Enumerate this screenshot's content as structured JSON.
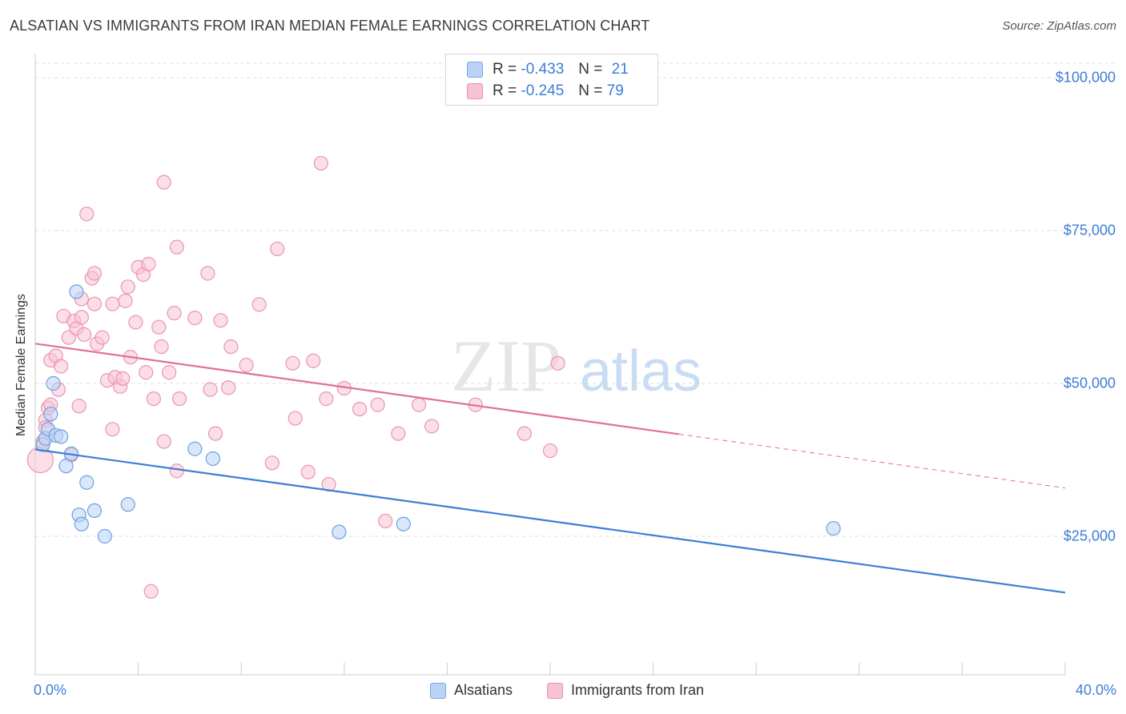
{
  "title": "ALSATIAN VS IMMIGRANTS FROM IRAN MEDIAN FEMALE EARNINGS CORRELATION CHART",
  "source": "Source: ZipAtlas.com",
  "watermark": {
    "zip": "ZIP",
    "atlas": "atlas"
  },
  "colors": {
    "blue": "#3d7dd8",
    "blue_fill": "#b8d3f5",
    "pink": "#e0709a",
    "pink_fill": "#f7c3d3",
    "grid": "#dcdcdc"
  },
  "legend": {
    "r_label": "R =",
    "n_label": "N =",
    "rows": [
      {
        "r": "-0.433",
        "n": "21"
      },
      {
        "r": "-0.245",
        "n": "79"
      }
    ]
  },
  "bottom_legend": {
    "series1": "Alsatians",
    "series2": "Immigrants from Iran"
  },
  "chart_data": {
    "type": "scatter",
    "title": "ALSATIAN VS IMMIGRANTS FROM IRAN MEDIAN FEMALE EARNINGS CORRELATION CHART",
    "ylabel": "Median Female Earnings",
    "xlabel": "",
    "x_tick_labels": [
      "0.0%",
      "40.0%"
    ],
    "y_tick_labels": [
      "$100,000",
      "$75,000",
      "$50,000",
      "$25,000"
    ],
    "y_ticks": [
      100000,
      75000,
      50000,
      25000
    ],
    "xlim": [
      0,
      40
    ],
    "ylim": [
      3000,
      102000
    ],
    "grid": true,
    "legend_position": "top-center",
    "series": [
      {
        "name": "Alsatians",
        "points": [
          [
            0.3,
            40.0
          ],
          [
            0.4,
            41.0
          ],
          [
            0.5,
            42.5
          ],
          [
            0.6,
            45.0
          ],
          [
            0.7,
            50.0
          ],
          [
            0.8,
            41.5
          ],
          [
            1.0,
            41.3
          ],
          [
            1.2,
            36.5
          ],
          [
            1.4,
            38.5
          ],
          [
            1.6,
            65.0
          ],
          [
            1.7,
            28.5
          ],
          [
            1.8,
            27.0
          ],
          [
            2.0,
            33.8
          ],
          [
            2.3,
            29.2
          ],
          [
            2.7,
            25.0
          ],
          [
            3.6,
            30.2
          ],
          [
            6.2,
            39.3
          ],
          [
            6.9,
            37.7
          ],
          [
            11.8,
            25.7
          ],
          [
            14.3,
            27.0
          ],
          [
            31.0,
            26.3
          ]
        ],
        "trend": {
          "x0": 0,
          "y0": 39.2,
          "x1": 40,
          "y1": 15.8
        }
      },
      {
        "name": "Immigrants from Iran",
        "points": [
          [
            0.2,
            37.5
          ],
          [
            0.3,
            40.5
          ],
          [
            0.4,
            44.0
          ],
          [
            0.4,
            42.8
          ],
          [
            0.5,
            46.0
          ],
          [
            0.6,
            46.5
          ],
          [
            0.6,
            53.8
          ],
          [
            0.8,
            54.5
          ],
          [
            0.9,
            49.0
          ],
          [
            1.0,
            52.8
          ],
          [
            1.1,
            61.0
          ],
          [
            1.3,
            57.5
          ],
          [
            1.4,
            38.3
          ],
          [
            1.5,
            60.2
          ],
          [
            1.6,
            59.0
          ],
          [
            1.7,
            46.3
          ],
          [
            1.8,
            63.8
          ],
          [
            1.8,
            60.8
          ],
          [
            1.9,
            58.0
          ],
          [
            2.0,
            77.7
          ],
          [
            2.2,
            67.2
          ],
          [
            2.3,
            68.0
          ],
          [
            2.3,
            63.0
          ],
          [
            2.4,
            56.5
          ],
          [
            2.6,
            57.5
          ],
          [
            2.8,
            50.5
          ],
          [
            3.0,
            42.5
          ],
          [
            3.0,
            63.0
          ],
          [
            3.1,
            51.0
          ],
          [
            3.3,
            49.5
          ],
          [
            3.4,
            50.8
          ],
          [
            3.5,
            63.5
          ],
          [
            3.6,
            65.8
          ],
          [
            3.7,
            54.3
          ],
          [
            3.9,
            60.0
          ],
          [
            4.0,
            69.0
          ],
          [
            4.2,
            67.8
          ],
          [
            4.3,
            51.8
          ],
          [
            4.4,
            69.5
          ],
          [
            4.5,
            16.0
          ],
          [
            4.6,
            47.5
          ],
          [
            4.8,
            59.2
          ],
          [
            4.9,
            56.0
          ],
          [
            5.0,
            40.5
          ],
          [
            5.0,
            82.9
          ],
          [
            5.2,
            51.8
          ],
          [
            5.4,
            61.5
          ],
          [
            5.5,
            72.3
          ],
          [
            5.5,
            35.7
          ],
          [
            5.6,
            47.5
          ],
          [
            6.2,
            60.7
          ],
          [
            6.7,
            68.0
          ],
          [
            6.8,
            49.0
          ],
          [
            7.0,
            41.8
          ],
          [
            7.2,
            60.3
          ],
          [
            7.5,
            49.3
          ],
          [
            7.6,
            56.0
          ],
          [
            8.2,
            53.0
          ],
          [
            8.7,
            62.9
          ],
          [
            9.2,
            37.0
          ],
          [
            9.4,
            72.0
          ],
          [
            10.0,
            53.3
          ],
          [
            10.1,
            44.3
          ],
          [
            10.6,
            35.5
          ],
          [
            10.8,
            53.7
          ],
          [
            11.1,
            86.0
          ],
          [
            11.3,
            47.5
          ],
          [
            11.4,
            33.5
          ],
          [
            12.0,
            49.2
          ],
          [
            12.6,
            45.8
          ],
          [
            13.3,
            46.5
          ],
          [
            13.6,
            27.5
          ],
          [
            14.1,
            41.8
          ],
          [
            14.9,
            46.5
          ],
          [
            15.4,
            43.0
          ],
          [
            17.1,
            46.5
          ],
          [
            19.0,
            41.8
          ],
          [
            20.3,
            53.3
          ],
          [
            20.0,
            39.0
          ]
        ],
        "trend": {
          "x0": 0,
          "y0": 56.5,
          "x1": 25,
          "y1": 41.7,
          "x_dash_end": 40,
          "y_dash_end": 32.9
        }
      }
    ]
  }
}
